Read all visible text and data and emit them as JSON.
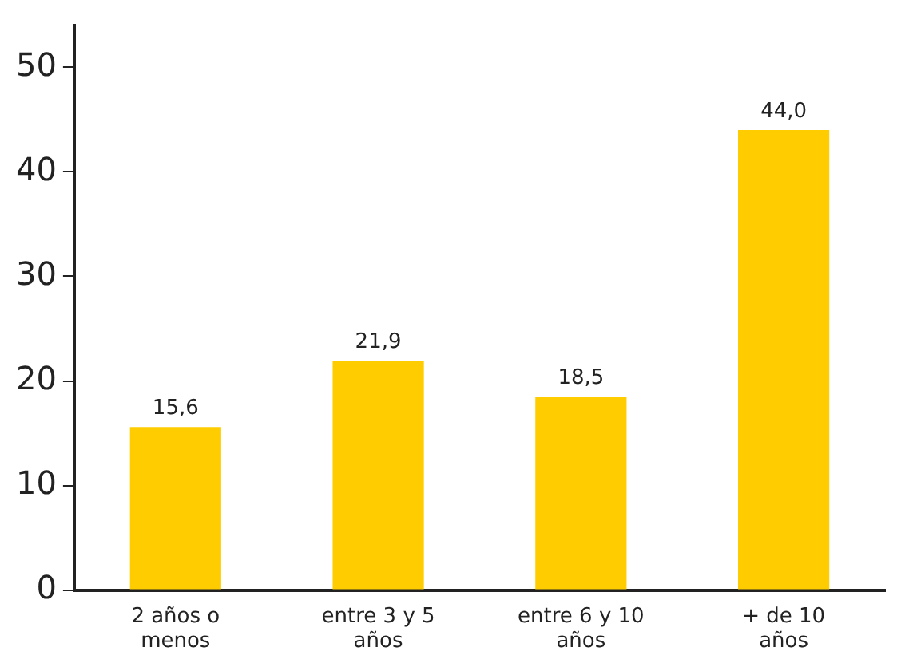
{
  "chart_data": {
    "type": "bar",
    "categories": [
      "2 años o menos",
      "entre 3 y 5 años",
      "entre 6 y 10 años",
      "+ de 10 años"
    ],
    "values": [
      15.6,
      21.9,
      18.5,
      44.0
    ],
    "value_labels": [
      "15,6",
      "21,9",
      "18,5",
      "44,0"
    ],
    "color": "#ffcc00",
    "ylim": [
      0,
      54
    ],
    "yticks": [
      0,
      10,
      20,
      30,
      40,
      50
    ],
    "grid": false,
    "legend": false
  }
}
